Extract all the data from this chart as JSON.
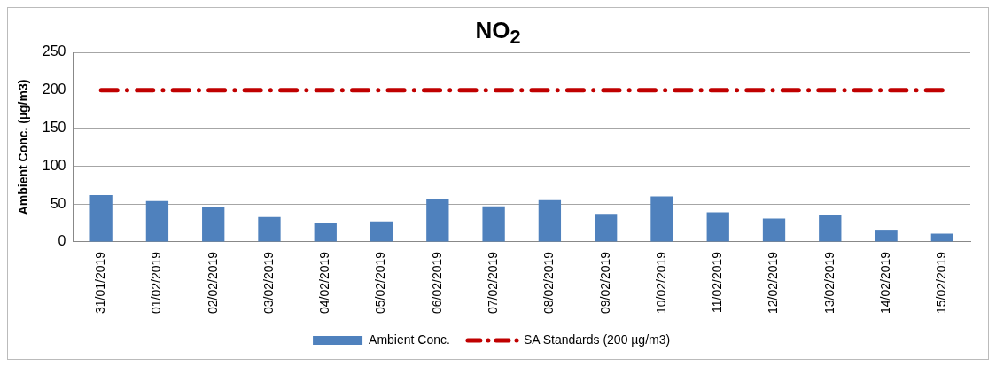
{
  "chart_data": {
    "type": "bar",
    "title": "NO$_{2}$",
    "ylabel": "Ambient Conc. (µg/m3)",
    "categories": [
      "31/01/2019",
      "01/02/2019",
      "02/02/2019",
      "03/02/2019",
      "04/02/2019",
      "05/02/2019",
      "06/02/2019",
      "07/02/2019",
      "08/02/2019",
      "09/02/2019",
      "10/02/2019",
      "11/02/2019",
      "12/02/2019",
      "13/02/2019",
      "14/02/2019",
      "15/02/2019"
    ],
    "series": [
      {
        "name": "Ambient Conc.",
        "color": "#4f81bd",
        "values": [
          62,
          54,
          46,
          33,
          25,
          27,
          57,
          47,
          55,
          37,
          60,
          39,
          31,
          36,
          15,
          11
        ]
      },
      {
        "name": "SA Standards (200 µg/m3)",
        "type": "line",
        "color": "#c00000",
        "line_style": "dashed",
        "marker": "none",
        "values": [
          200,
          200,
          200,
          200,
          200,
          200,
          200,
          200,
          200,
          200,
          200,
          200,
          200,
          200,
          200,
          200
        ]
      }
    ],
    "ylim": [
      0,
      250
    ],
    "yticks": [
      0,
      50,
      100,
      150,
      200,
      250
    ],
    "grid": "y",
    "legend": "bottom"
  }
}
